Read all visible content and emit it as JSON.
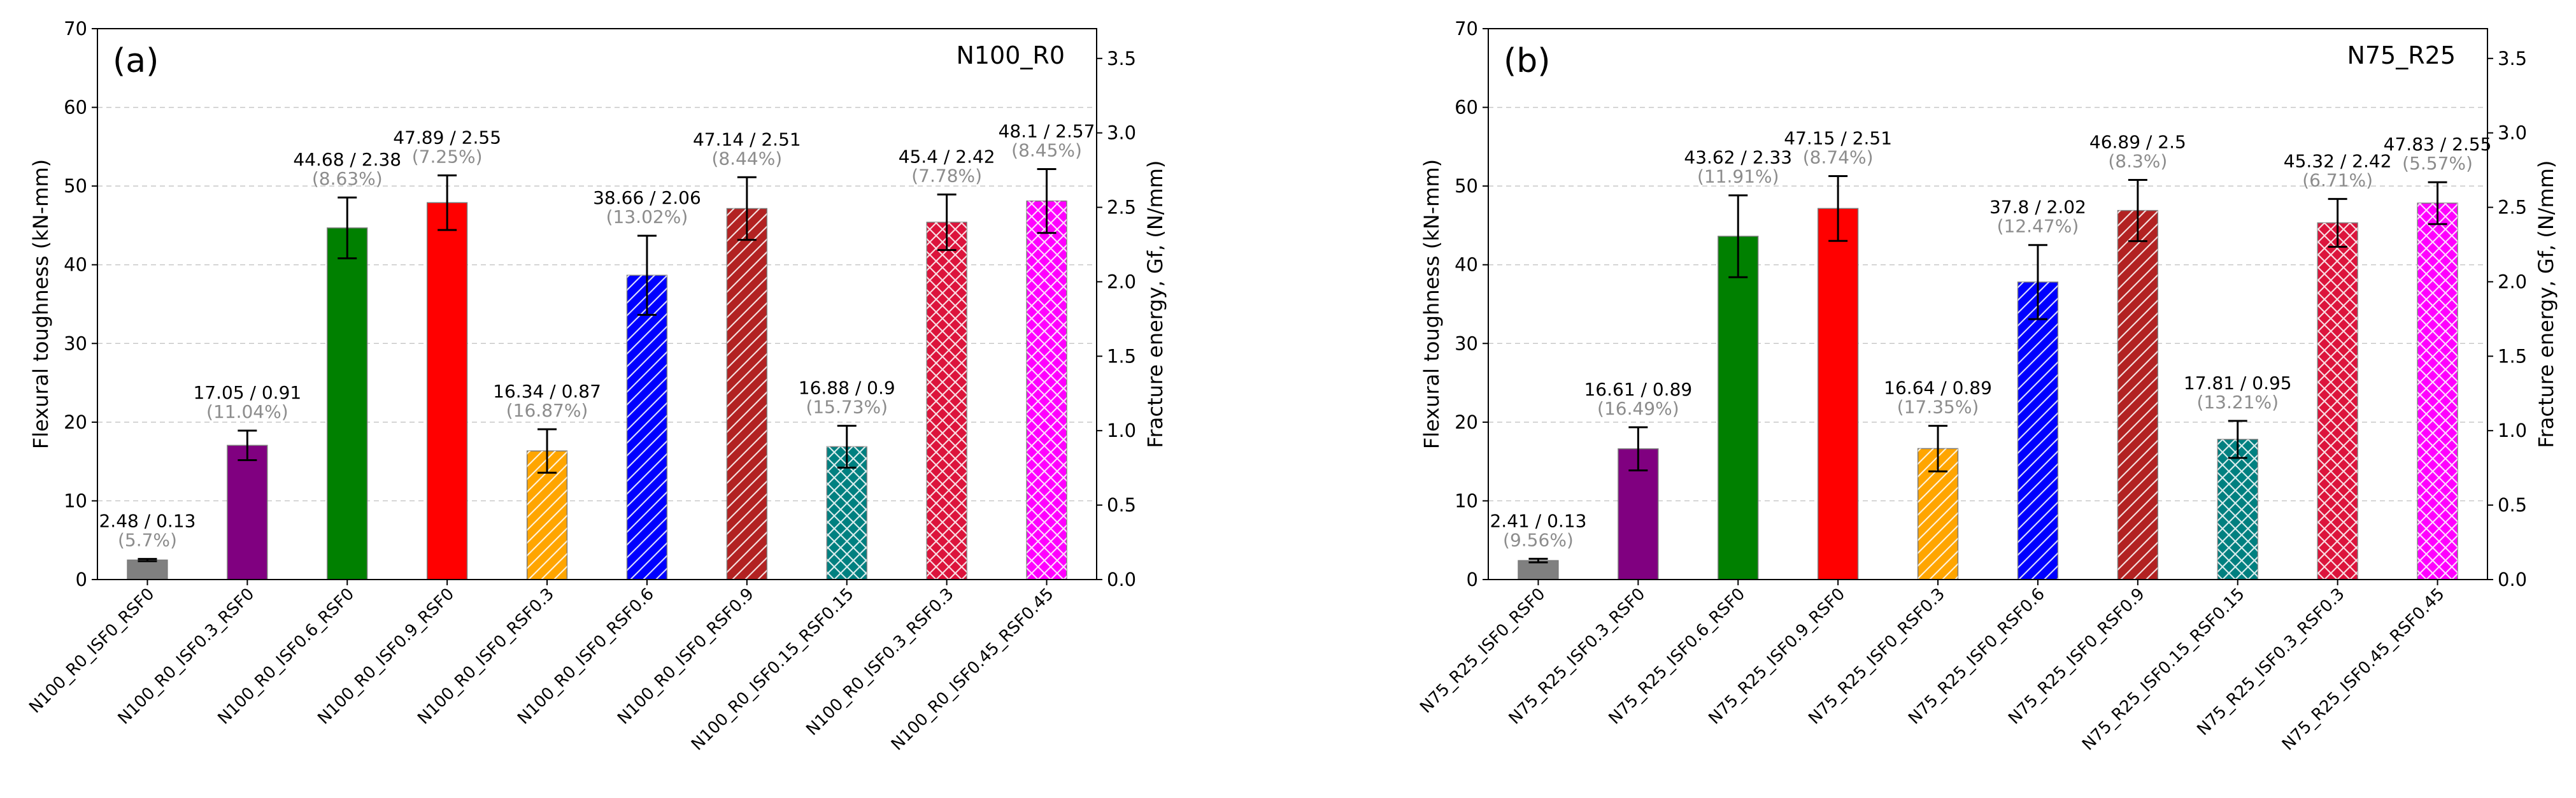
{
  "chart_data": [
    {
      "type": "bar",
      "panel_label": "(a)",
      "title": "N100_R0",
      "ylabel": "Flexural toughness (kN-mm)",
      "ylabel_right": "Fracture energy, Gf, (N/mm)",
      "ylim": [
        0,
        70
      ],
      "yticks": [
        0,
        10,
        20,
        30,
        40,
        50,
        60,
        70
      ],
      "ylim_right": [
        0,
        3.7
      ],
      "yticks_right": [
        "0.0",
        "0.5",
        "1.0",
        "1.5",
        "2.0",
        "2.5",
        "3.0",
        "3.5"
      ],
      "grid": "horizontal-dashed",
      "categories": [
        "N100_R0_ISF0_RSF0",
        "N100_R0_ISF0.3_RSF0",
        "N100_R0_ISF0.6_RSF0",
        "N100_R0_ISF0.9_RSF0",
        "N100_R0_ISF0_RSF0.3",
        "N100_R0_ISF0_RSF0.6",
        "N100_R0_ISF0_RSF0.9",
        "N100_R0_ISF0.15_RSF0.15",
        "N100_R0_ISF0.3_RSF0.3",
        "N100_R0_ISF0.45_RSF0.45"
      ],
      "values": [
        2.48,
        17.05,
        44.68,
        47.89,
        16.34,
        38.66,
        47.14,
        16.88,
        45.4,
        48.1
      ],
      "errors": [
        0.14,
        1.88,
        3.86,
        3.47,
        2.76,
        5.03,
        3.98,
        2.66,
        3.53,
        4.06
      ],
      "labels": [
        "2.48 / 0.13",
        "17.05 / 0.91",
        "44.68 / 2.38",
        "47.89 / 2.55",
        "16.34 / 0.87",
        "38.66 / 2.06",
        "47.14 / 2.51",
        "16.88 / 0.9",
        "45.4 / 2.42",
        "48.1 / 2.57"
      ],
      "cv_labels": [
        "(5.7%)",
        "(11.04%)",
        "(8.63%)",
        "(7.25%)",
        "(16.87%)",
        "(13.02%)",
        "(8.44%)",
        "(15.73%)",
        "(7.78%)",
        "(8.45%)"
      ],
      "colors": [
        "#808080",
        "#800080",
        "#008000",
        "#ff0000",
        "#ffa500",
        "#0000ff",
        "#b22222",
        "#008080",
        "#dc143c",
        "#ff00ff"
      ],
      "patterns": [
        "none",
        "none",
        "none",
        "none",
        "diag",
        "diag",
        "diag",
        "cross",
        "cross",
        "cross"
      ]
    },
    {
      "type": "bar",
      "panel_label": "(b)",
      "title": "N75_R25",
      "ylabel": "Flexural toughness (kN-mm)",
      "ylabel_right": "Fracture energy, Gf, (N/mm)",
      "ylim": [
        0,
        70
      ],
      "yticks": [
        0,
        10,
        20,
        30,
        40,
        50,
        60,
        70
      ],
      "ylim_right": [
        0,
        3.7
      ],
      "yticks_right": [
        "0.0",
        "0.5",
        "1.0",
        "1.5",
        "2.0",
        "2.5",
        "3.0",
        "3.5"
      ],
      "grid": "horizontal-dashed",
      "categories": [
        "N75_R25_ISF0_RSF0",
        "N75_R25_ISF0.3_RSF0",
        "N75_R25_ISF0.6_RSF0",
        "N75_R25_ISF0.9_RSF0",
        "N75_R25_ISF0_RSF0.3",
        "N75_R25_ISF0_RSF0.6",
        "N75_R25_ISF0_RSF0.9",
        "N75_R25_ISF0.15_RSF0.15",
        "N75_R25_ISF0.3_RSF0.3",
        "N75_R25_ISF0.45_RSF0.45"
      ],
      "values": [
        2.41,
        16.61,
        43.62,
        47.15,
        16.64,
        37.8,
        46.89,
        17.81,
        45.32,
        47.83
      ],
      "errors": [
        0.23,
        2.74,
        5.2,
        4.12,
        2.89,
        4.71,
        3.89,
        2.35,
        3.04,
        2.66
      ],
      "labels": [
        "2.41 / 0.13",
        "16.61 / 0.89",
        "43.62 / 2.33",
        "47.15 / 2.51",
        "16.64 / 0.89",
        "37.8 / 2.02",
        "46.89 / 2.5",
        "17.81 / 0.95",
        "45.32 / 2.42",
        "47.83 / 2.55"
      ],
      "cv_labels": [
        "(9.56%)",
        "(16.49%)",
        "(11.91%)",
        "(8.74%)",
        "(17.35%)",
        "(12.47%)",
        "(8.3%)",
        "(13.21%)",
        "(6.71%)",
        "(5.57%)"
      ],
      "colors": [
        "#808080",
        "#800080",
        "#008000",
        "#ff0000",
        "#ffa500",
        "#0000ff",
        "#b22222",
        "#008080",
        "#dc143c",
        "#ff00ff"
      ],
      "patterns": [
        "none",
        "none",
        "none",
        "none",
        "diag",
        "diag",
        "diag",
        "cross",
        "cross",
        "cross"
      ]
    }
  ]
}
